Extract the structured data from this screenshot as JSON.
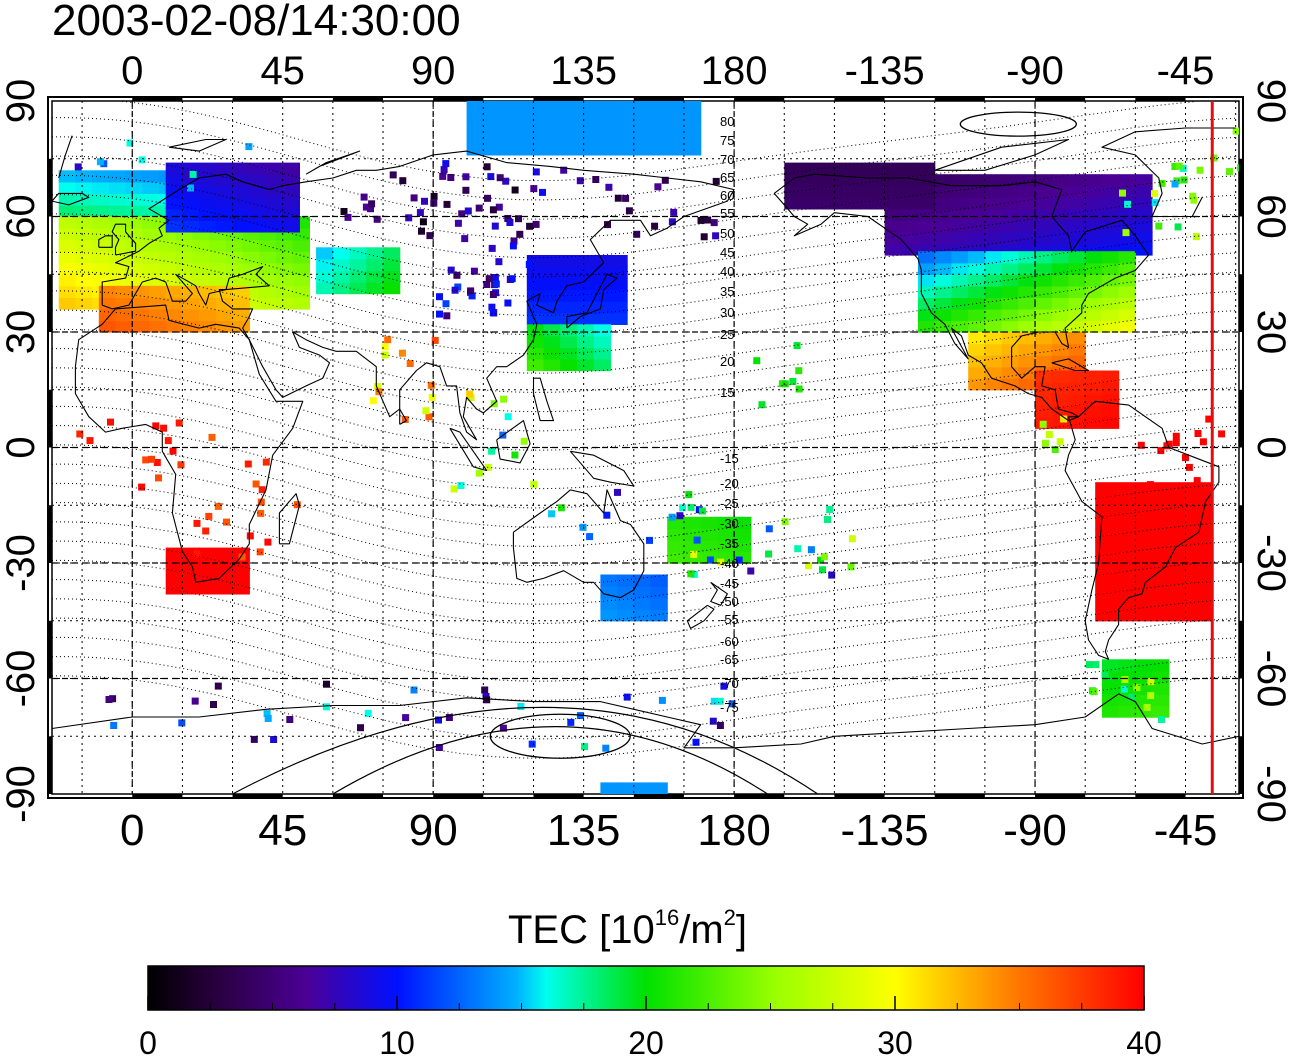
{
  "title": "2003-02-08/14:30:00",
  "map": {
    "top_lon_labels": [
      "0",
      "45",
      "90",
      "135",
      "180",
      "-135",
      "-90",
      "-45"
    ],
    "bottom_lon_labels": [
      "0",
      "45",
      "90",
      "135",
      "180",
      "-135",
      "-90",
      "-45"
    ],
    "left_lat_labels": [
      "90",
      "60",
      "30",
      "0",
      "-30",
      "-60",
      "-90"
    ],
    "right_lat_labels": [
      "90",
      "60",
      "30",
      "0",
      "-30",
      "-60",
      "-90"
    ],
    "contour_labels_north": [
      "80",
      "75",
      "70",
      "65",
      "60",
      "55",
      "50",
      "45",
      "40",
      "35",
      "30",
      "25",
      "20",
      "15"
    ],
    "contour_labels_south": [
      "-15",
      "-20",
      "-25",
      "-30",
      "-35",
      "-40",
      "-45",
      "-50",
      "-55",
      "-60",
      "-65",
      "-70",
      "-75"
    ],
    "terminator_color": "#e01010"
  },
  "colorbar": {
    "label_main": "TEC  [10",
    "label_exp": "16",
    "label_unit": "/m",
    "label_exp2": "2",
    "label_end": "]",
    "tick_labels": [
      "0",
      "10",
      "20",
      "30",
      "40"
    ],
    "min": 0,
    "max": 40
  }
}
